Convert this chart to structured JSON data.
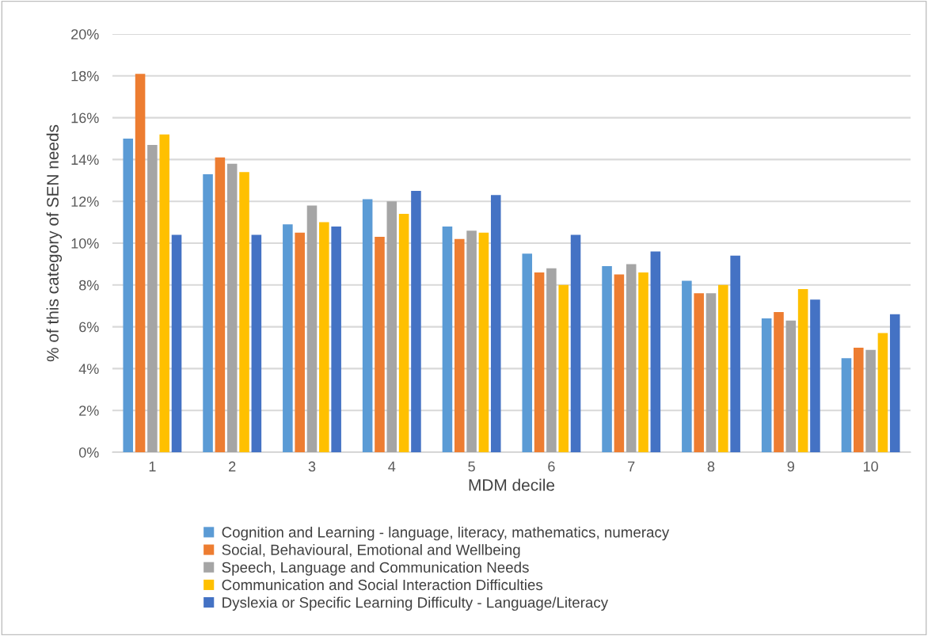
{
  "chart_data": {
    "type": "bar",
    "xlabel": "MDM decile",
    "ylabel": "% of this category of SEN needs",
    "categories": [
      "1",
      "2",
      "3",
      "4",
      "5",
      "6",
      "7",
      "8",
      "9",
      "10"
    ],
    "series": [
      {
        "name": "Cognition and Learning - language, literacy, mathematics, numeracy",
        "color": "#5b9bd5",
        "values": [
          15.0,
          13.3,
          10.9,
          12.1,
          10.8,
          9.5,
          8.9,
          8.2,
          6.4,
          4.5
        ]
      },
      {
        "name": "Social, Behavioural, Emotional and Wellbeing",
        "color": "#ed7d31",
        "values": [
          18.1,
          14.1,
          10.5,
          10.3,
          10.2,
          8.6,
          8.5,
          7.6,
          6.7,
          5.0
        ]
      },
      {
        "name": "Speech, Language and Communication Needs",
        "color": "#a5a5a5",
        "values": [
          14.7,
          13.8,
          11.8,
          12.0,
          10.6,
          8.8,
          9.0,
          7.6,
          6.3,
          4.9
        ]
      },
      {
        "name": "Communication and Social Interaction Difficulties",
        "color": "#ffc000",
        "values": [
          15.2,
          13.4,
          11.0,
          11.4,
          10.5,
          8.0,
          8.6,
          8.0,
          7.8,
          5.7
        ]
      },
      {
        "name": "Dyslexia or Specific Learning Difficulty - Language/Literacy",
        "color": "#4472c4",
        "values": [
          10.4,
          10.4,
          10.8,
          12.5,
          12.3,
          10.4,
          9.6,
          9.4,
          7.3,
          6.6
        ]
      }
    ],
    "ylim": [
      0,
      20
    ],
    "yticks": [
      {
        "value": 0,
        "label": "0%"
      },
      {
        "value": 2,
        "label": "2%"
      },
      {
        "value": 4,
        "label": "4%"
      },
      {
        "value": 6,
        "label": "6%"
      },
      {
        "value": 8,
        "label": "8%"
      },
      {
        "value": 10,
        "label": "10%"
      },
      {
        "value": 12,
        "label": "12%"
      },
      {
        "value": 14,
        "label": "14%"
      },
      {
        "value": 16,
        "label": "16%"
      },
      {
        "value": 18,
        "label": "18%"
      },
      {
        "value": 20,
        "label": "20%"
      }
    ],
    "grid": "y",
    "legend": "bottom"
  }
}
